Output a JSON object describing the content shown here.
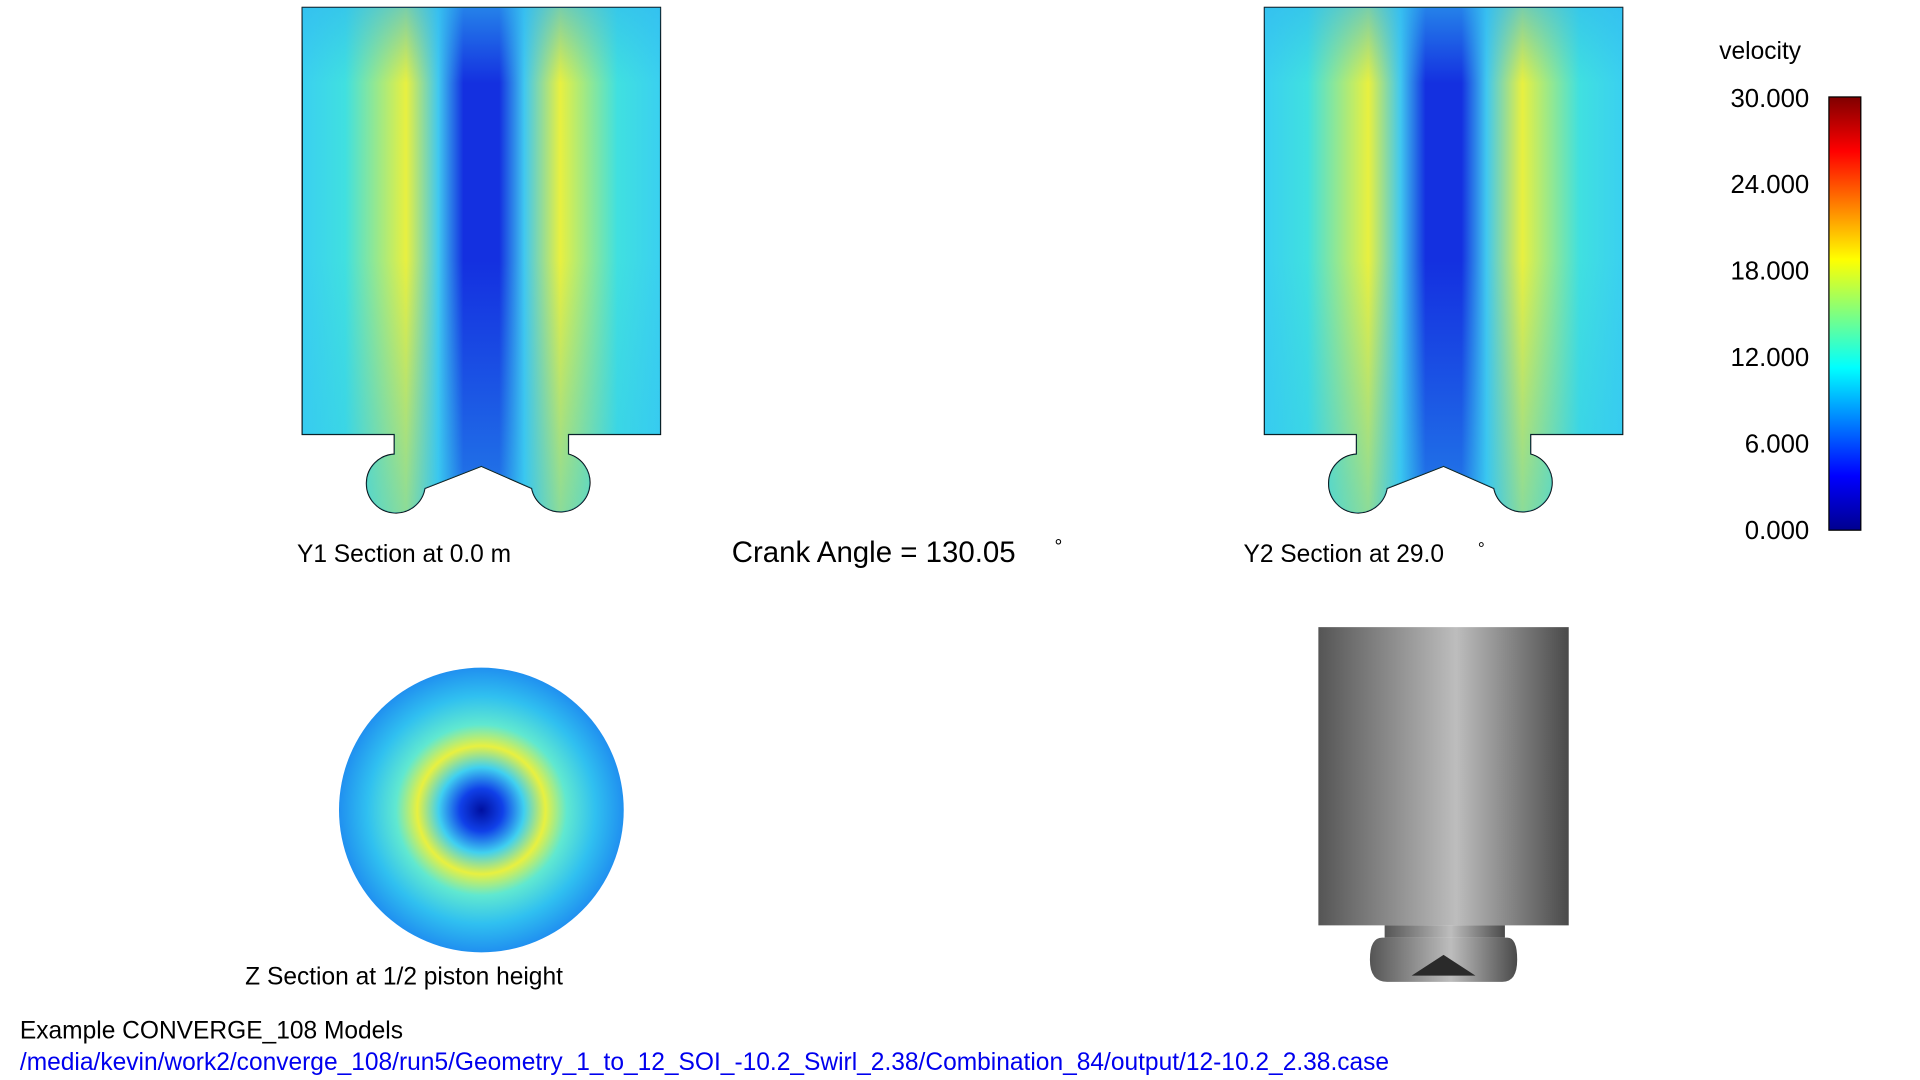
{
  "colorbar": {
    "title": "velocity",
    "ticks": [
      "30.000",
      "24.000",
      "18.000",
      "12.000",
      "6.000",
      "0.000"
    ]
  },
  "panels": {
    "y1_section": {
      "label": "Y1 Section at 0.0 m"
    },
    "crank_angle": {
      "text": "Crank Angle = 130.05",
      "unit": "°"
    },
    "y2_section": {
      "label": "Y2 Section at 29.0",
      "unit": "°"
    },
    "z_section": {
      "label": "Z Section at 1/2 piston height"
    }
  },
  "footer": {
    "title": "Example CONVERGE_108 Models",
    "path": "/media/kevin/work2/converge_108/run5/Geometry_1_to_12_SOI_-10.2_Swirl_2.38/Combination_84/output/12-10.2_2.38.case"
  }
}
